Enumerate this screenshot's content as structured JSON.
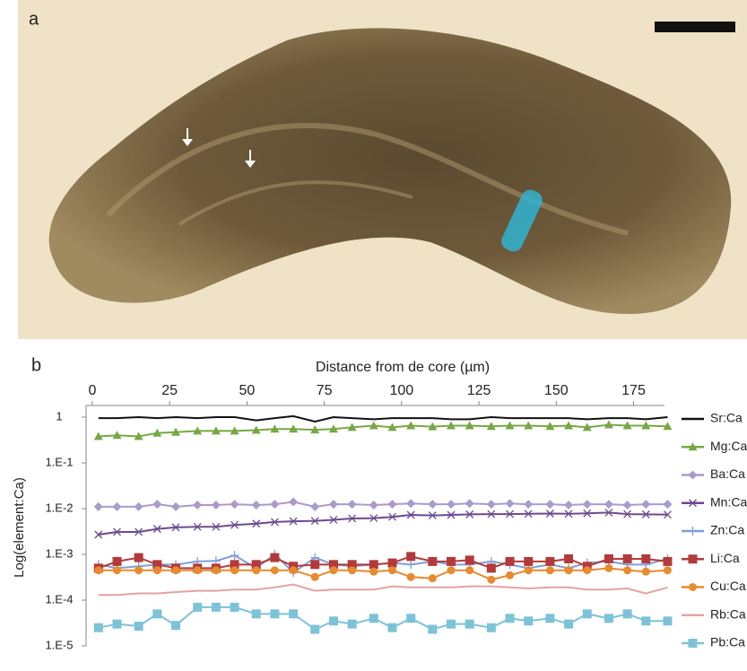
{
  "panel_a_label": "a",
  "chart_data": {
    "type": "line",
    "panel_label": "b",
    "x_label": "Distance from de core (µm)",
    "y_label": "Log(element:Ca)",
    "log_y": true,
    "grid": false,
    "legend_position": "right",
    "xlim": [
      -2,
      185
    ],
    "xticks": [
      0,
      25,
      50,
      75,
      100,
      125,
      150,
      175
    ],
    "ylim": [
      1e-05,
      1.8
    ],
    "yticks": [
      1,
      {
        "value": 0.1,
        "label": "1.E-1"
      },
      {
        "value": 0.01,
        "label": "1.E-2"
      },
      {
        "value": 0.001,
        "label": "1.E-3"
      },
      {
        "value": 0.0001,
        "label": "1.E-4"
      },
      {
        "value": 1e-05,
        "label": "1.E-5"
      }
    ],
    "x": [
      2,
      8,
      15,
      21,
      27,
      34,
      40,
      46,
      53,
      59,
      65,
      72,
      78,
      84,
      91,
      97,
      103,
      110,
      116,
      122,
      129,
      135,
      141,
      148,
      154,
      160,
      167,
      173,
      179,
      186
    ],
    "series": [
      {
        "name": "Sr:Ca",
        "color": "#111111",
        "marker": "none",
        "values": [
          0.95,
          0.95,
          1,
          0.95,
          1,
          0.95,
          1,
          1,
          0.85,
          0.95,
          1.05,
          0.8,
          1,
          0.95,
          0.9,
          0.95,
          0.95,
          0.95,
          0.9,
          0.9,
          1,
          0.95,
          0.95,
          0.95,
          0.95,
          0.9,
          0.95,
          0.95,
          0.9,
          1
        ]
      },
      {
        "name": "Mg:Ca",
        "color": "#77a844",
        "marker": "triangle",
        "values": [
          0.38,
          0.4,
          0.38,
          0.45,
          0.47,
          0.5,
          0.5,
          0.5,
          0.52,
          0.55,
          0.55,
          0.53,
          0.55,
          0.6,
          0.65,
          0.6,
          0.65,
          0.62,
          0.65,
          0.65,
          0.63,
          0.65,
          0.65,
          0.63,
          0.65,
          0.6,
          0.68,
          0.65,
          0.65,
          0.63
        ]
      },
      {
        "name": "Ba:Ca",
        "color": "#a99bcc",
        "marker": "diamond",
        "values": [
          0.011,
          0.011,
          0.011,
          0.0125,
          0.011,
          0.012,
          0.012,
          0.0125,
          0.012,
          0.0125,
          0.014,
          0.011,
          0.0125,
          0.0125,
          0.012,
          0.0125,
          0.013,
          0.0125,
          0.0125,
          0.013,
          0.0125,
          0.013,
          0.0125,
          0.0125,
          0.012,
          0.0125,
          0.0125,
          0.012,
          0.0125,
          0.0125
        ]
      },
      {
        "name": "Mn:Ca",
        "color": "#6b4a8e",
        "marker": "x",
        "values": [
          0.0027,
          0.0031,
          0.0031,
          0.0036,
          0.0039,
          0.004,
          0.004,
          0.0044,
          0.0047,
          0.0051,
          0.0053,
          0.0054,
          0.0057,
          0.0061,
          0.0062,
          0.0066,
          0.0073,
          0.0071,
          0.0073,
          0.0075,
          0.0076,
          0.0076,
          0.0077,
          0.0078,
          0.0077,
          0.0079,
          0.0082,
          0.0076,
          0.0075,
          0.0074
        ]
      },
      {
        "name": "Zn:Ca",
        "color": "#7f9fd6",
        "marker": "plus",
        "values": [
          0.0006,
          0.0005,
          0.00055,
          0.0006,
          0.0006,
          0.0007,
          0.00072,
          0.00095,
          0.0005,
          0.001,
          0.0004,
          0.00085,
          0.0006,
          0.00055,
          0.0006,
          0.00065,
          0.0006,
          0.0007,
          0.0006,
          0.0006,
          0.0007,
          0.0006,
          0.0005,
          0.0006,
          0.0005,
          0.00065,
          0.0007,
          0.0006,
          0.0006,
          0.0008
        ]
      },
      {
        "name": "Li:Ca",
        "color": "#b33a3a",
        "marker": "square",
        "values": [
          0.0005,
          0.0007,
          0.00085,
          0.0006,
          0.0005,
          0.0005,
          0.0005,
          0.0006,
          0.0006,
          0.00085,
          0.00055,
          0.0006,
          0.0006,
          0.0006,
          0.0006,
          0.00065,
          0.0009,
          0.0007,
          0.0007,
          0.00075,
          0.0005,
          0.0007,
          0.0007,
          0.0007,
          0.0008,
          0.00055,
          0.0008,
          0.0008,
          0.0008,
          0.0007
        ]
      },
      {
        "name": "Cu:Ca",
        "color": "#e88a2e",
        "marker": "circle",
        "values": [
          0.00045,
          0.00045,
          0.00045,
          0.00045,
          0.00045,
          0.00045,
          0.00045,
          0.00045,
          0.00045,
          0.00045,
          0.00045,
          0.00032,
          0.00045,
          0.00045,
          0.00042,
          0.00045,
          0.00032,
          0.0003,
          0.00045,
          0.00045,
          0.00028,
          0.00035,
          0.00045,
          0.00045,
          0.00045,
          0.00045,
          0.0005,
          0.00045,
          0.00042,
          0.00045
        ]
      },
      {
        "name": "Rb:Ca",
        "color": "#e3a3a3",
        "marker": "none",
        "values": [
          0.00013,
          0.00013,
          0.00014,
          0.00014,
          0.00015,
          0.00016,
          0.00016,
          0.00017,
          0.00017,
          0.00019,
          0.00022,
          0.00016,
          0.00017,
          0.00017,
          0.00017,
          0.0002,
          0.00019,
          0.00019,
          0.00019,
          0.0002,
          0.0002,
          0.00019,
          0.00018,
          0.00019,
          0.00019,
          0.00017,
          0.00017,
          0.00018,
          0.00014,
          0.00019
        ]
      },
      {
        "name": "Pb:Ca",
        "color": "#7cc3d8",
        "marker": "square",
        "values": [
          2.5e-05,
          3e-05,
          2.7e-05,
          5e-05,
          2.8e-05,
          7e-05,
          7e-05,
          7e-05,
          5e-05,
          5e-05,
          5e-05,
          2.3e-05,
          3.5e-05,
          3e-05,
          4e-05,
          2.5e-05,
          4e-05,
          2.3e-05,
          3e-05,
          3e-05,
          2.5e-05,
          4e-05,
          3.5e-05,
          4e-05,
          3e-05,
          5e-05,
          4e-05,
          5e-05,
          3.5e-05,
          3.5e-05
        ]
      }
    ]
  }
}
